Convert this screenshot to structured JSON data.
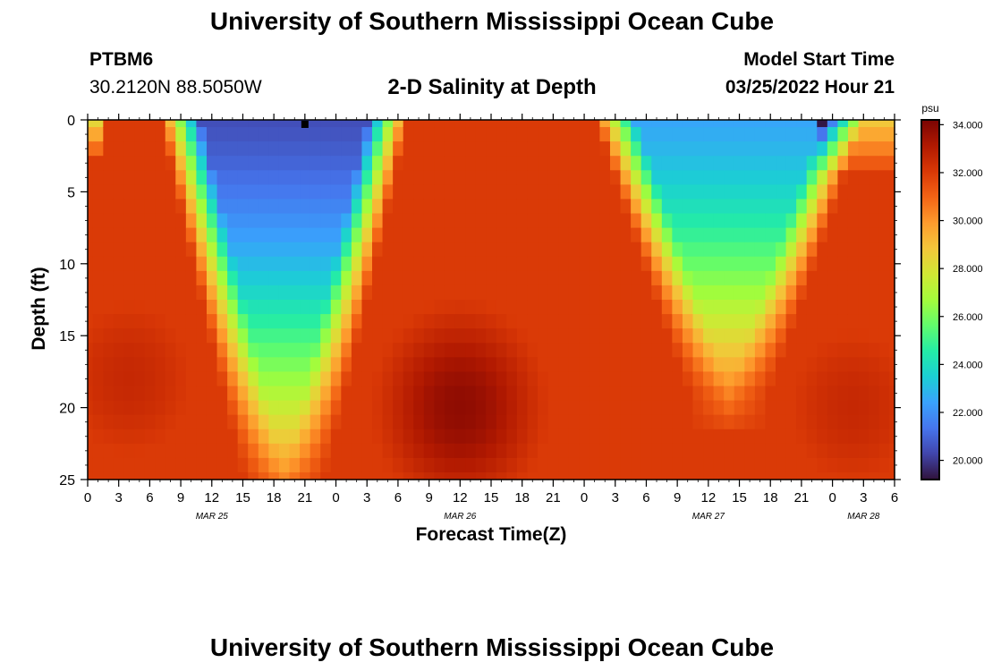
{
  "header": {
    "title": "University of Southern Mississippi Ocean Cube",
    "station_id": "PTBM6",
    "coordinates": "30.2120N  88.5050W",
    "subtitle": "2-D Salinity at Depth",
    "model_start_label": "Model Start Time",
    "model_start_value": "03/25/2022 Hour 21"
  },
  "footer": {
    "title": "University of Southern Mississippi Ocean Cube"
  },
  "chart_data": {
    "type": "heatmap",
    "title": "2-D Salinity at Depth",
    "xlabel": "Forecast Time(Z)",
    "ylabel": "Depth (ft)",
    "x_range_hours": [
      0,
      78
    ],
    "ylim": [
      25,
      0
    ],
    "x_tick_hours": [
      0,
      3,
      6,
      9,
      12,
      15,
      18,
      21,
      24,
      27,
      30,
      33,
      36,
      39,
      42,
      45,
      48,
      51,
      54,
      57,
      60,
      63,
      66,
      69,
      72,
      75,
      78
    ],
    "x_tick_labels": [
      "0",
      "3",
      "6",
      "9",
      "12",
      "15",
      "18",
      "21",
      "0",
      "3",
      "6",
      "9",
      "12",
      "15",
      "18",
      "21",
      "0",
      "3",
      "6",
      "9",
      "12",
      "15",
      "18",
      "21",
      "0",
      "3",
      "6"
    ],
    "date_labels": [
      {
        "hour": 12,
        "text": "MAR 25"
      },
      {
        "hour": 36,
        "text": "MAR 26"
      },
      {
        "hour": 60,
        "text": "MAR 27"
      },
      {
        "hour": 75,
        "text": "MAR 28"
      }
    ],
    "y_ticks": [
      0,
      5,
      10,
      15,
      20,
      25
    ],
    "y_tick_labels": [
      "0",
      "5",
      "10",
      "15",
      "20",
      "25"
    ],
    "colorbar": {
      "unit": "psu",
      "min": 19.2,
      "max": 34.2,
      "ticks": [
        34,
        32,
        30,
        28,
        26,
        24,
        22,
        20
      ],
      "tick_labels": [
        "34.000",
        "32.000",
        "30.000",
        "28.000",
        "26.000",
        "24.000",
        "22.000",
        "20.000"
      ],
      "colors": [
        "#30123b",
        "#4145ab",
        "#4675ed",
        "#39a2fc",
        "#1bcfd4",
        "#24eca6",
        "#61fc6c",
        "#a4fc3b",
        "#d1e834",
        "#f3c63a",
        "#fe9b2d",
        "#f36315",
        "#d93806",
        "#b11901",
        "#7a0403"
      ]
    },
    "grid": {
      "nx": 79,
      "ny": 26,
      "x_hour_step": 1,
      "depth_step_ft": 1
    },
    "salinity_structure": {
      "surface_fresh_layer": [
        {
          "center_hour": 19,
          "width_hours": 8,
          "surface_depth_ft": 25,
          "min_psu": 20.5
        },
        {
          "center_hour": 62,
          "width_hours": 9,
          "surface_depth_ft": 19,
          "min_psu": 22.5
        }
      ],
      "salty_core": [
        {
          "center_hour": 4,
          "depth_ft": 18,
          "max_psu": 32.6
        },
        {
          "center_hour": 36,
          "depth_ft": 20,
          "max_psu": 33.8
        },
        {
          "center_hour": 74,
          "depth_ft": 20,
          "max_psu": 32.6
        }
      ],
      "surface_marker_hour": 21
    }
  }
}
